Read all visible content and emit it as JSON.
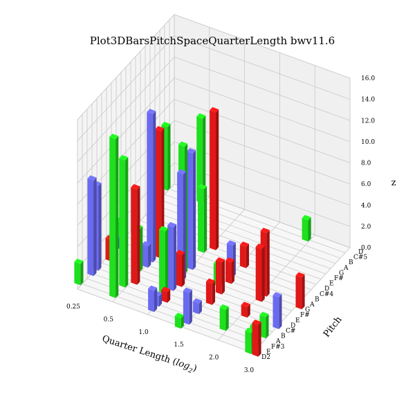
{
  "chart_data": {
    "type": "bar3d",
    "title": "Plot3DBarsPitchSpaceQuarterLength bwv11.6",
    "xlabel": "Quarter Length ($log_2$)",
    "xlabel_text": "Quarter Length (",
    "xlabel_math": "log",
    "xlabel_sub": "2",
    "xlabel_close": ")",
    "ylabel": "Pitch",
    "zlabel": "z",
    "x_ticks": [
      "0.25",
      "0.5",
      "1.0",
      "1.5",
      "2.0",
      "3.0"
    ],
    "y_ticks": [
      "D2",
      "E",
      "F#3",
      "A",
      "B",
      "C#",
      "D",
      "E",
      "F#",
      "G",
      "A",
      "B",
      "C#4",
      "D",
      "E",
      "F#",
      "G",
      "A",
      "B",
      "C#5",
      "D"
    ],
    "z_ticks": [
      "0.0",
      "2.0",
      "4.0",
      "6.0",
      "8.0",
      "10.0",
      "12.0",
      "14.0",
      "16.0"
    ],
    "zlim": [
      0,
      16
    ],
    "colors": {
      "green": "#1ee01e",
      "blue": "#6a6af0",
      "red": "#e01818"
    },
    "bars": [
      {
        "x": 0.25,
        "y": "D",
        "z": 2,
        "color": "red"
      },
      {
        "x": 0.25,
        "y": "E",
        "z": 2,
        "color": "green"
      },
      {
        "x": 0.25,
        "y": "F#",
        "z": 1,
        "color": "blue"
      },
      {
        "x": 0.25,
        "y": "G",
        "z": 2,
        "color": "green"
      },
      {
        "x": 0.25,
        "y": "A",
        "z": 9,
        "color": "blue"
      },
      {
        "x": 0.25,
        "y": "B",
        "z": 8,
        "color": "blue"
      },
      {
        "x": 0.25,
        "y": "C#5",
        "z": 6,
        "color": "green"
      },
      {
        "x": 0.5,
        "y": "E",
        "z": 15,
        "color": "green"
      },
      {
        "x": 0.5,
        "y": "F#",
        "z": 14,
        "color": "blue"
      },
      {
        "x": 0.5,
        "y": "G",
        "z": 12,
        "color": "red"
      },
      {
        "x": 0.5,
        "y": "A",
        "z": 12,
        "color": "green"
      },
      {
        "x": 0.5,
        "y": "B",
        "z": 9,
        "color": "red"
      },
      {
        "x": 0.5,
        "y": "C#5",
        "z": 8,
        "color": "green"
      },
      {
        "x": 0.5,
        "y": "D",
        "z": 4,
        "color": "green"
      },
      {
        "x": 0.5,
        "y": "E",
        "z": 2,
        "color": "blue"
      },
      {
        "x": 1.0,
        "y": "F#3",
        "z": 1,
        "color": "blue"
      },
      {
        "x": 1.0,
        "y": "A",
        "z": 1,
        "color": "red"
      },
      {
        "x": 1.0,
        "y": "B",
        "z": 6,
        "color": "green"
      },
      {
        "x": 1.0,
        "y": "C#",
        "z": 6,
        "color": "blue"
      },
      {
        "x": 1.0,
        "y": "D",
        "z": 3,
        "color": "red"
      },
      {
        "x": 1.0,
        "y": "E",
        "z": 2,
        "color": "blue"
      },
      {
        "x": 1.0,
        "y": "C#4",
        "z": 6,
        "color": "green"
      },
      {
        "x": 1.0,
        "y": "D",
        "z": 13,
        "color": "red"
      },
      {
        "x": 1.0,
        "y": "E",
        "z": 10,
        "color": "blue"
      },
      {
        "x": 1.0,
        "y": "F#",
        "z": 12,
        "color": "green"
      },
      {
        "x": 1.0,
        "y": "G",
        "z": 11,
        "color": "blue"
      },
      {
        "x": 1.5,
        "y": "D2",
        "z": 1,
        "color": "green"
      },
      {
        "x": 1.5,
        "y": "A",
        "z": 1,
        "color": "blue"
      },
      {
        "x": 1.5,
        "y": "C#",
        "z": 2,
        "color": "red"
      },
      {
        "x": 1.5,
        "y": "E",
        "z": 3,
        "color": "blue"
      },
      {
        "x": 1.5,
        "y": "G",
        "z": 2,
        "color": "red"
      },
      {
        "x": 1.5,
        "y": "C#4",
        "z": 2,
        "color": "red"
      },
      {
        "x": 1.5,
        "y": "E",
        "z": 3,
        "color": "red"
      },
      {
        "x": 1.5,
        "y": "F#",
        "z": 2,
        "color": "green"
      },
      {
        "x": 1.5,
        "y": "A",
        "z": 3,
        "color": "blue"
      },
      {
        "x": 2.0,
        "y": "F#3",
        "z": 2,
        "color": "green"
      },
      {
        "x": 2.0,
        "y": "C#",
        "z": 1,
        "color": "red"
      },
      {
        "x": 2.0,
        "y": "F#",
        "z": 5,
        "color": "red"
      },
      {
        "x": 2.0,
        "y": "G",
        "z": 6,
        "color": "red"
      },
      {
        "x": 2.0,
        "y": "C#5",
        "z": 2,
        "color": "green"
      },
      {
        "x": 3.0,
        "y": "D2",
        "z": 3,
        "color": "red"
      },
      {
        "x": 3.0,
        "y": "D2",
        "z": 2,
        "color": "green"
      },
      {
        "x": 3.0,
        "y": "C#",
        "z": 3,
        "color": "blue"
      },
      {
        "x": 3.0,
        "y": "E",
        "z": 2,
        "color": "green"
      },
      {
        "x": 3.0,
        "y": "G",
        "z": 3,
        "color": "red"
      },
      {
        "x": 3.0,
        "y": "A",
        "z": 2,
        "color": "green"
      }
    ]
  }
}
